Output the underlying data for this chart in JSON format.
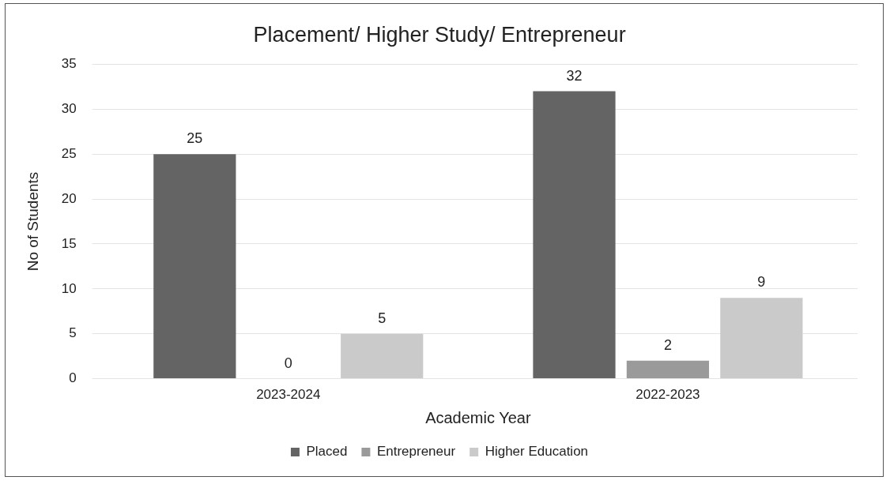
{
  "chart_data": {
    "type": "bar",
    "title": "Placement/ Higher Study/ Entrepreneur",
    "xlabel": "Academic Year",
    "ylabel": "No of Students",
    "categories": [
      "2023-2024",
      "2022-2023"
    ],
    "series": [
      {
        "name": "Placed",
        "color": "#646464",
        "values": [
          25,
          32
        ]
      },
      {
        "name": "Entrepreneur",
        "color": "#9a9a9a",
        "values": [
          0,
          2
        ]
      },
      {
        "name": "Higher Education",
        "color": "#cacaca",
        "values": [
          5,
          9
        ]
      }
    ],
    "ylim": [
      0,
      35
    ],
    "yticks": [
      0,
      5,
      10,
      15,
      20,
      25,
      30,
      35
    ],
    "grid": "y",
    "legend": "bottom",
    "data_labels": true
  }
}
